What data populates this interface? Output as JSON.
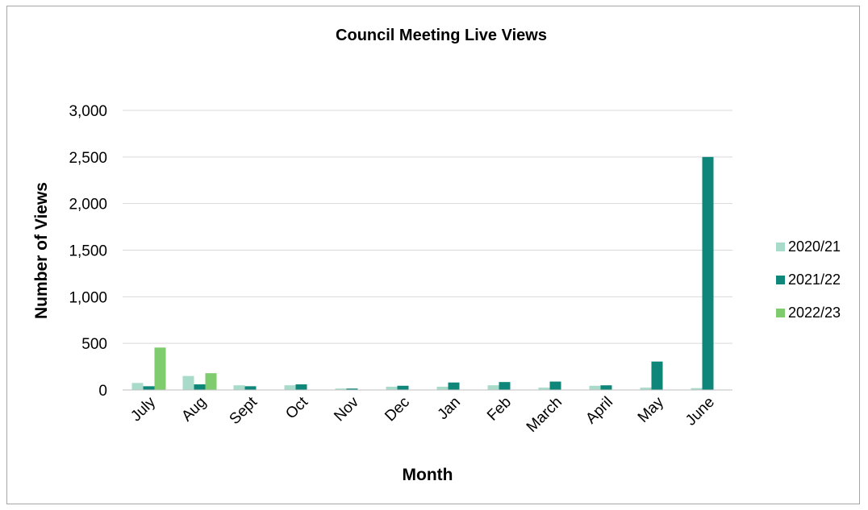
{
  "chart_data": {
    "type": "bar",
    "title": "Council Meeting Live Views",
    "xlabel": "Month",
    "ylabel": "Number of Views",
    "categories": [
      "July",
      "Aug",
      "Sept",
      "Oct",
      "Nov",
      "Dec",
      "Jan",
      "Feb",
      "March",
      "April",
      "May",
      "June"
    ],
    "series": [
      {
        "name": "2020/21",
        "color": "#a8dbc9",
        "values": [
          75,
          150,
          50,
          50,
          15,
          35,
          35,
          50,
          25,
          45,
          25,
          20
        ]
      },
      {
        "name": "2021/22",
        "color": "#0e877a",
        "values": [
          40,
          60,
          40,
          60,
          15,
          45,
          80,
          85,
          90,
          50,
          305,
          2500
        ]
      },
      {
        "name": "2022/23",
        "color": "#7fcc6e",
        "values": [
          455,
          180,
          null,
          null,
          null,
          null,
          null,
          null,
          null,
          null,
          null,
          null
        ]
      }
    ],
    "ylim": [
      0,
      3000
    ],
    "yticks": [
      0,
      500,
      1000,
      1500,
      2000,
      2500,
      3000
    ],
    "ytick_labels": [
      "0",
      "500",
      "1,000",
      "1,500",
      "2,000",
      "2,500",
      "3,000"
    ],
    "grid": true,
    "legend_position": "right"
  }
}
